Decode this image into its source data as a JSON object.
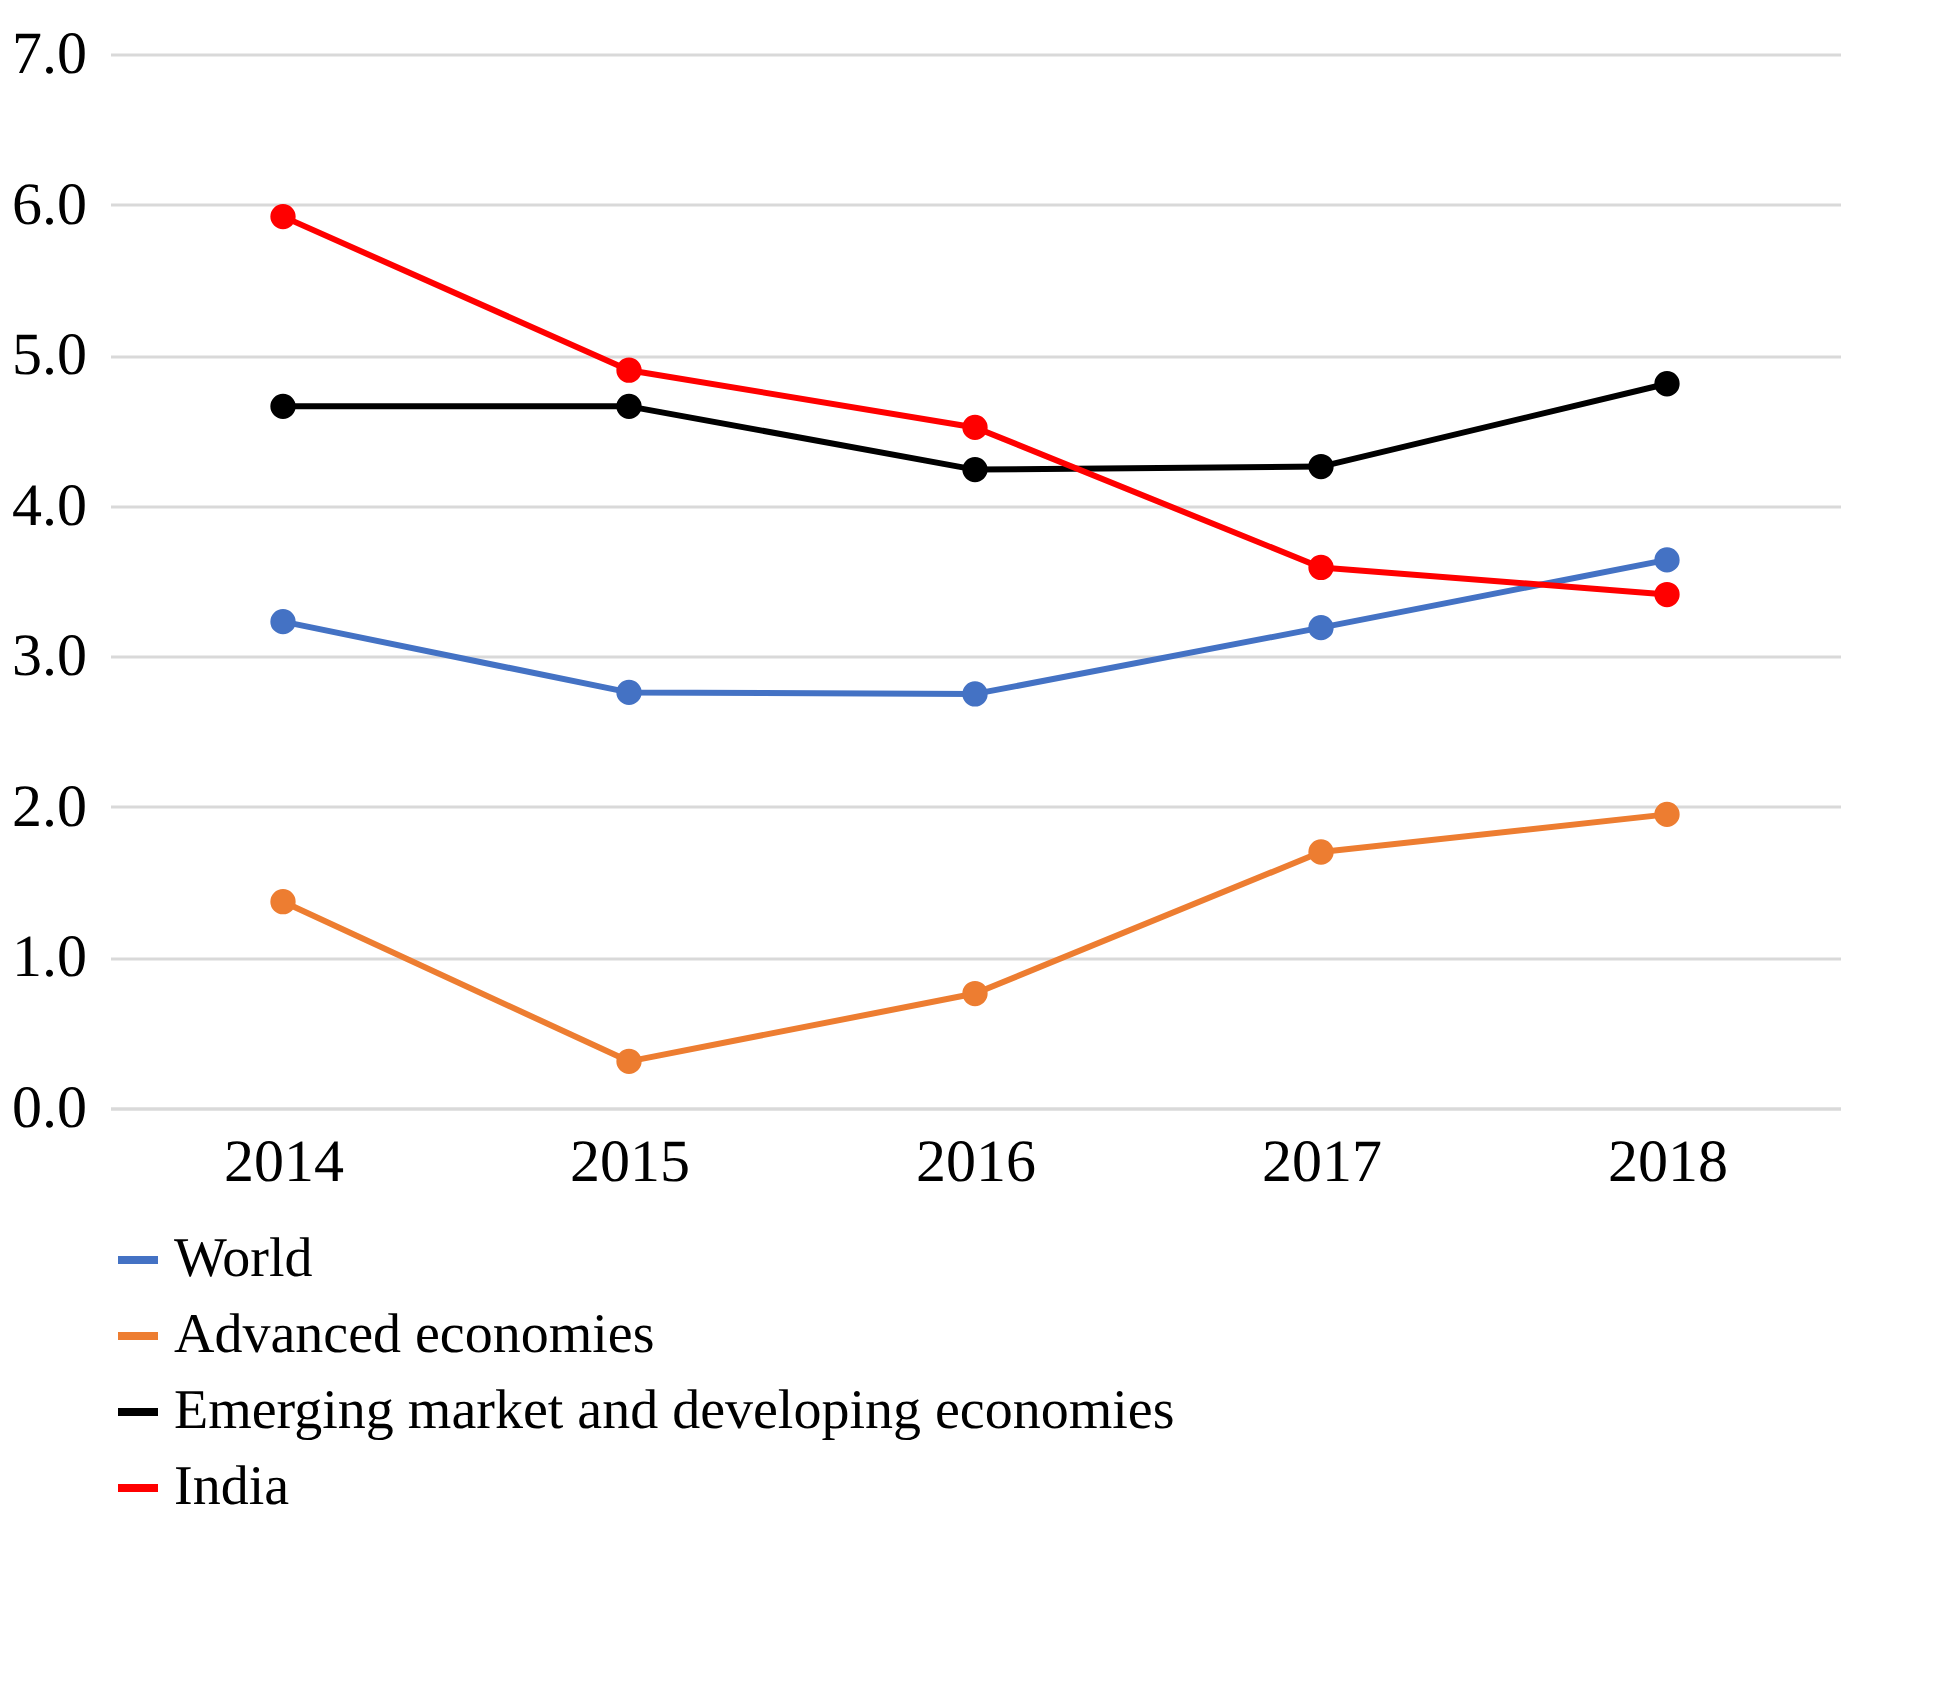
{
  "chart_data": {
    "type": "line",
    "categories": [
      "2014",
      "2015",
      "2016",
      "2017",
      "2018"
    ],
    "series": [
      {
        "name": "World",
        "color": "#4472c4",
        "values": [
          3.23,
          2.76,
          2.75,
          3.19,
          3.64
        ]
      },
      {
        "name": "Advanced economies",
        "color": "#ed7d31",
        "values": [
          1.37,
          0.31,
          0.76,
          1.7,
          1.95
        ]
      },
      {
        "name": "Emerging market and developing economies",
        "color": "#000000",
        "values": [
          4.66,
          4.66,
          4.24,
          4.26,
          4.81
        ]
      },
      {
        "name": "India",
        "color": "#ff0000",
        "values": [
          5.92,
          4.9,
          4.52,
          3.59,
          3.41
        ]
      }
    ],
    "ylim": [
      0,
      7
    ],
    "yticks": [
      {
        "value": 0,
        "label": "0.0"
      },
      {
        "value": 1,
        "label": "1.0"
      },
      {
        "value": 2,
        "label": "2.0"
      },
      {
        "value": 3,
        "label": "3.0"
      },
      {
        "value": 4,
        "label": "4.0"
      },
      {
        "value": 5,
        "label": "5.0"
      },
      {
        "value": 6,
        "label": "6.0"
      },
      {
        "value": 7,
        "label": "7.0"
      }
    ],
    "grid": "y",
    "legend": "bottom",
    "marker": "circle",
    "line_style": "solid"
  }
}
